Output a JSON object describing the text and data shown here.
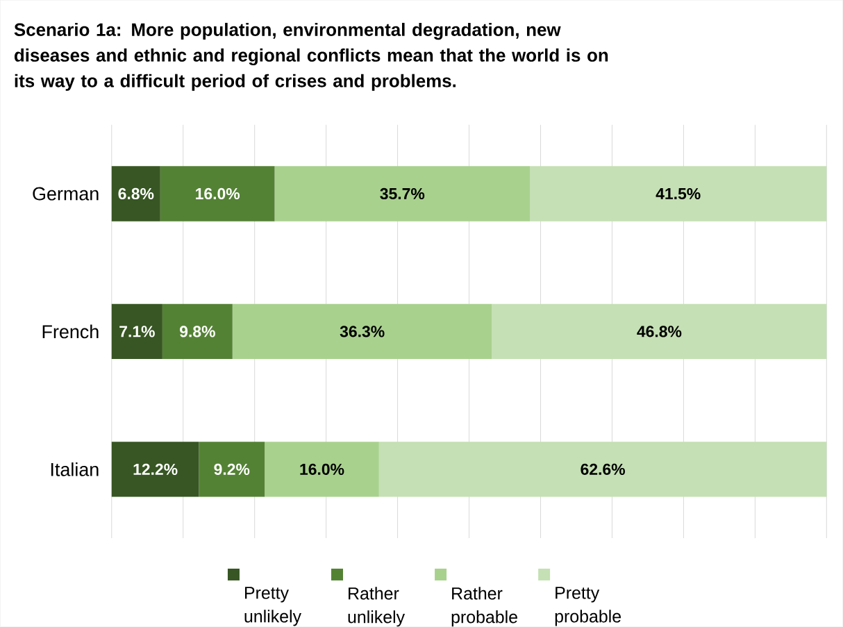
{
  "chart_data": {
    "type": "bar",
    "orientation": "horizontal",
    "stacked": true,
    "title": "**Scenario 1a: More population, environmental degradation, new diseases and ethnic and regional conflicts mean that the world is on its way to a difficult period of crises and problems.**",
    "categories": [
      "German",
      "French",
      "Italian"
    ],
    "series": [
      {
        "name": "Pretty unlikely",
        "color": "#375623",
        "values": [
          6.8,
          7.1,
          12.2
        ],
        "value_labels": [
          "6.8%",
          "7.1%",
          "12.2%"
        ]
      },
      {
        "name": "Rather unlikely",
        "color": "#548235",
        "values": [
          16.0,
          9.8,
          9.2
        ],
        "value_labels": [
          "16.0%",
          "9.8%",
          "9.2%"
        ]
      },
      {
        "name": "Rather probable",
        "color": "#a9d18e",
        "values": [
          35.7,
          36.3,
          16.0
        ],
        "value_labels": [
          "35.7%",
          "36.3%",
          "16.0%"
        ]
      },
      {
        "name": "Pretty probable",
        "color": "#c5e0b4",
        "values": [
          41.5,
          46.8,
          62.6
        ],
        "value_labels": [
          "41.5%",
          "46.8%",
          "62.6%"
        ]
      }
    ],
    "xlim": [
      0,
      100
    ],
    "xticks": [
      {
        "value": 0,
        "label": null
      },
      {
        "value": 10,
        "label": null
      },
      {
        "value": 20,
        "label": null
      },
      {
        "value": 30,
        "label": null
      },
      {
        "value": 40,
        "label": null
      },
      {
        "value": 50,
        "label": null
      },
      {
        "value": 60,
        "label": null
      },
      {
        "value": 70,
        "label": null
      },
      {
        "value": 80,
        "label": null
      },
      {
        "value": 90,
        "label": null
      },
      {
        "value": 100,
        "label": null
      }
    ],
    "grid": "x",
    "legend": "bottom",
    "tick_labels": "y"
  }
}
